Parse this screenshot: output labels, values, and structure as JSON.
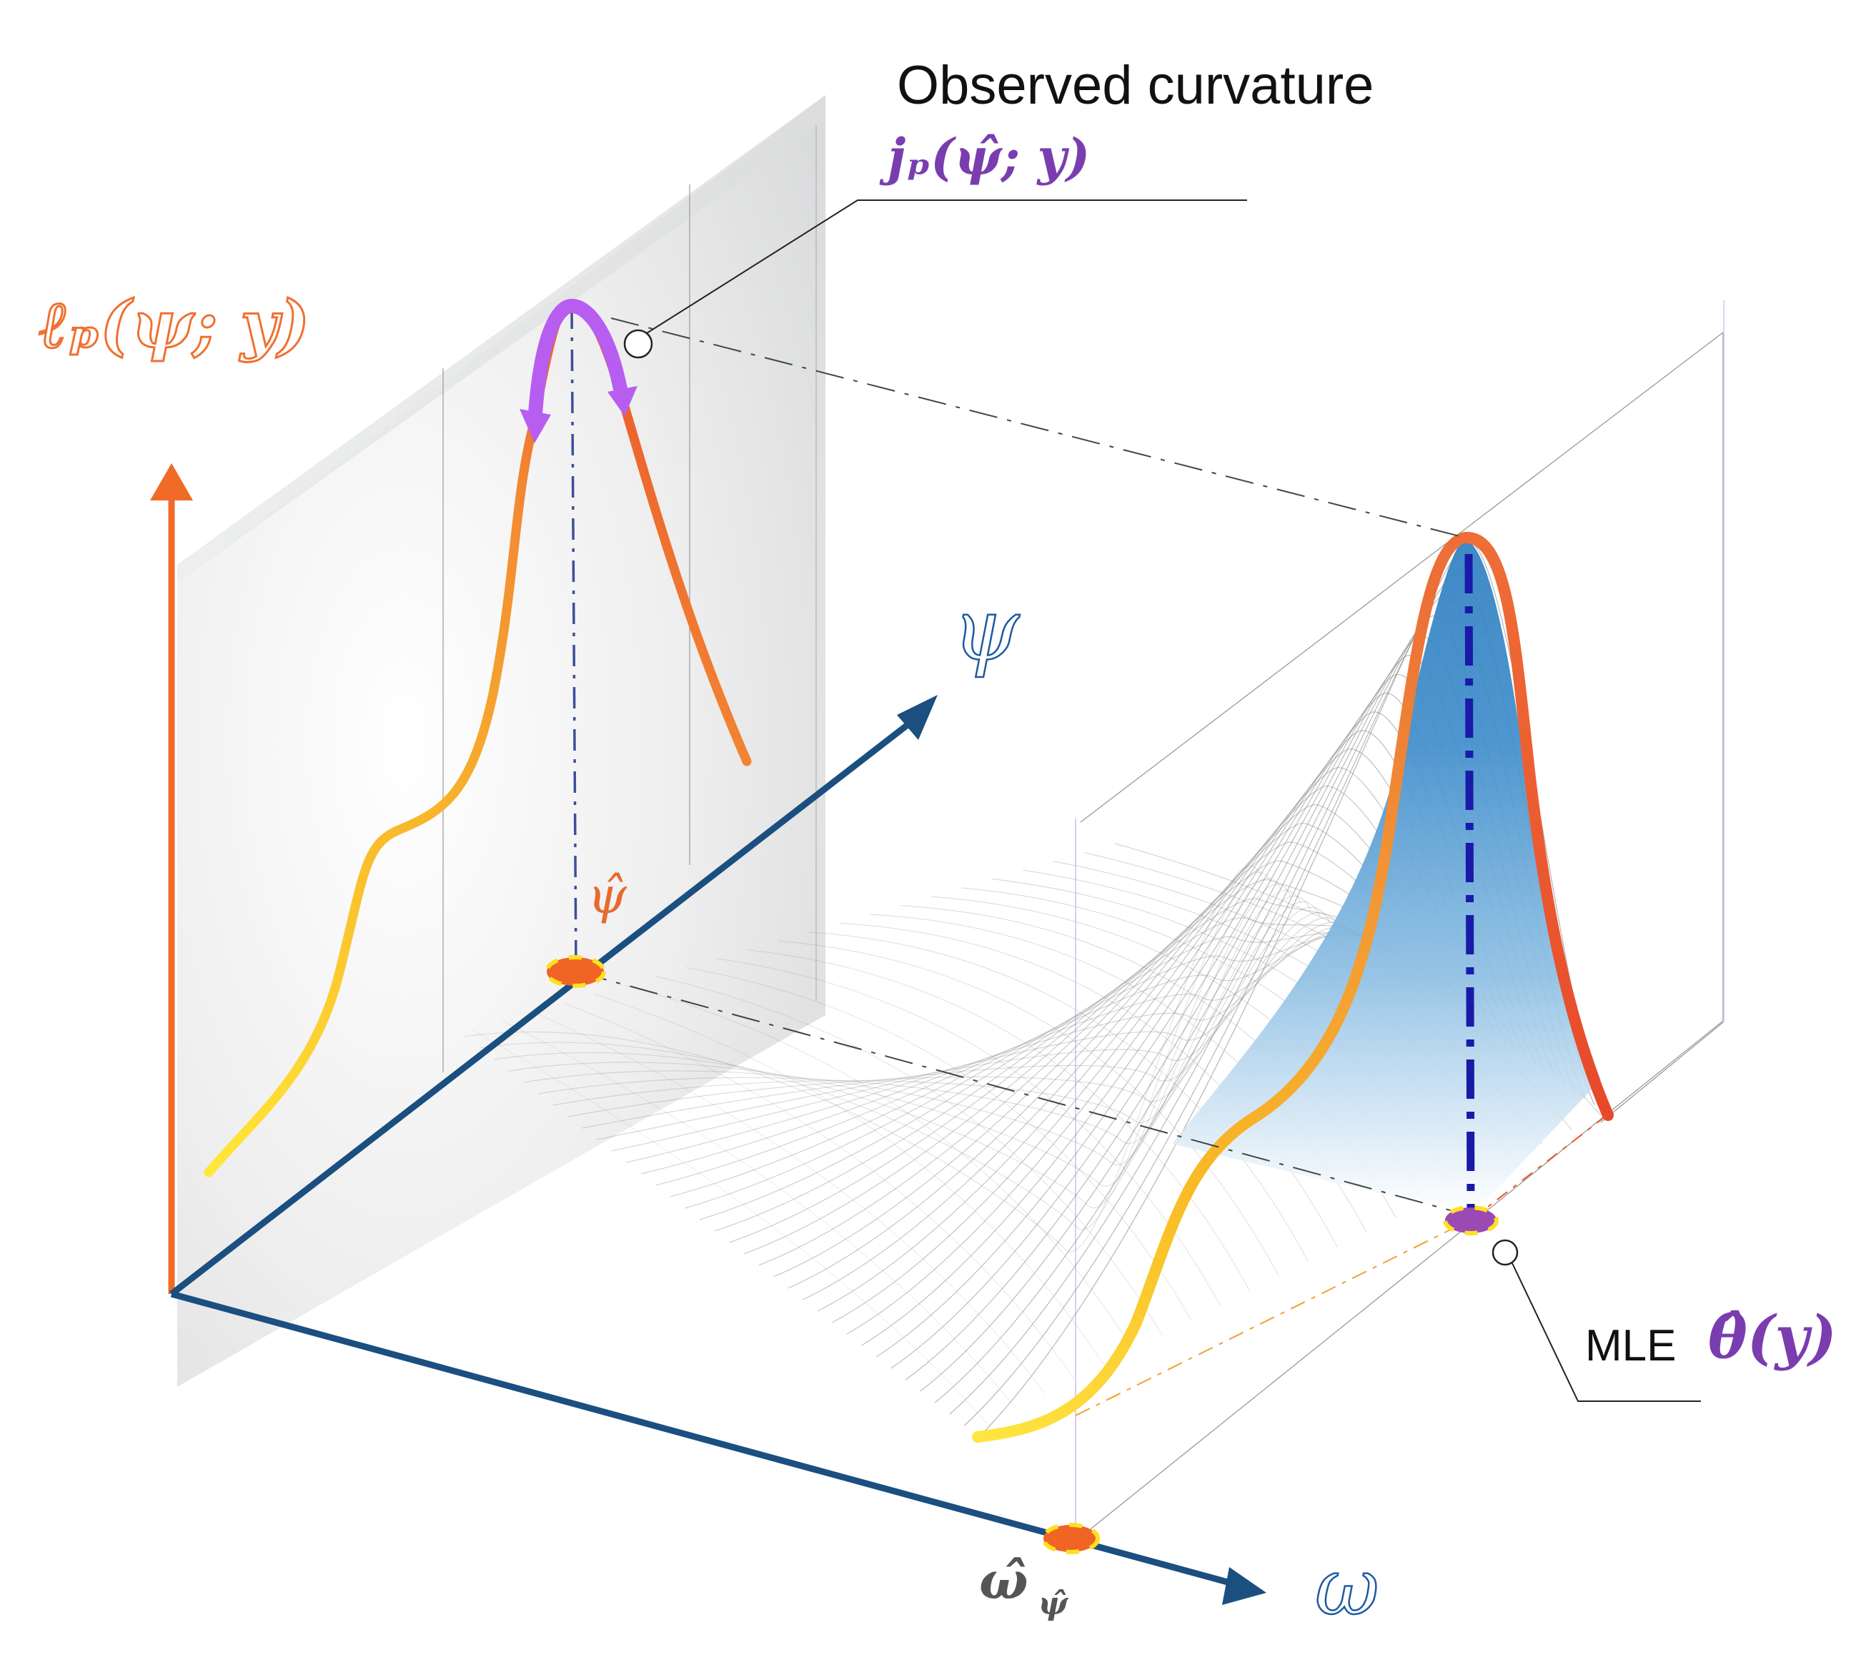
{
  "labels": {
    "curvature_title": "Observed curvature",
    "curvature_symbol": "jₚ(ψ̂; y)",
    "profile_likelihood": "ℓₚ(ψ; y)",
    "psi_axis": "ψ",
    "omega_axis": "ω",
    "psi_hat": "ψ̂",
    "omega_hat": "ω̂",
    "omega_hat_subscript": "ψ̂",
    "mle_word": "MLE",
    "mle_symbol": "θ̂(y)"
  },
  "colors": {
    "axis_blue": "#1a4f80",
    "profile_orange": "#f06a28",
    "curvature_purple": "#b75ef0",
    "label_purple": "#7a3db0",
    "peak_blue": "#2f7fc1",
    "panel_gray": "#e4e5e6",
    "mle_line_blue": "#1a1aa8"
  }
}
